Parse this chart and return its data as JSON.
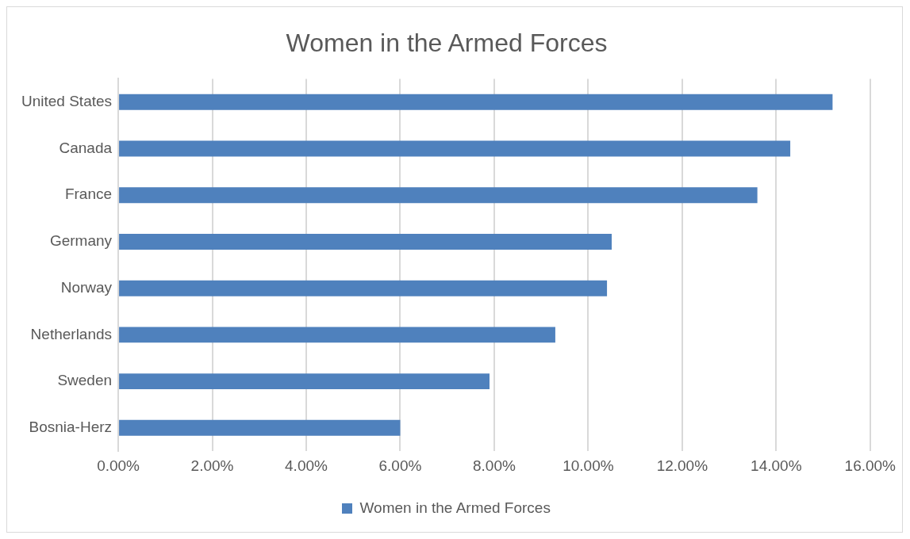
{
  "chart_data": {
    "type": "bar",
    "orientation": "horizontal",
    "title": "Women in the Armed Forces",
    "categories": [
      "United States",
      "Canada",
      "France",
      "Germany",
      "Norway",
      "Netherlands",
      "Sweden",
      "Bosnia-Herz"
    ],
    "series": [
      {
        "name": "Women in the Armed Forces",
        "color": "#4f81bd",
        "values": [
          15.2,
          14.3,
          13.6,
          10.5,
          10.4,
          9.3,
          7.9,
          6.0
        ]
      }
    ],
    "xlim": [
      0,
      16
    ],
    "xticks": [
      {
        "value": 0,
        "label": "0.00%"
      },
      {
        "value": 2,
        "label": "2.00%"
      },
      {
        "value": 4,
        "label": "4.00%"
      },
      {
        "value": 6,
        "label": "6.00%"
      },
      {
        "value": 8,
        "label": "8.00%"
      },
      {
        "value": 10,
        "label": "10.00%"
      },
      {
        "value": 12,
        "label": "12.00%"
      },
      {
        "value": 14,
        "label": "14.00%"
      },
      {
        "value": 16,
        "label": "16.00%"
      }
    ],
    "grid": "x",
    "legend": "bottom"
  }
}
